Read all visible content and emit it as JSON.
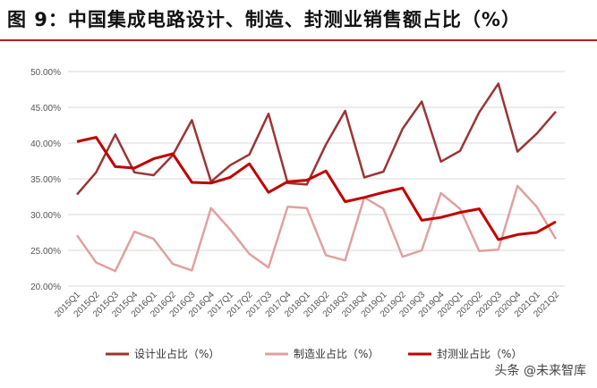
{
  "title": "图 9：中国集成电路设计、制造、封测业销售额占比（%）",
  "watermark": "头条 @未来智库",
  "chart_data": {
    "type": "line",
    "title": "图 9：中国集成电路设计、制造、封测业销售额占比（%）",
    "ylim": [
      20,
      50
    ],
    "yticks": [
      "20.00%",
      "25.00%",
      "30.00%",
      "35.00%",
      "40.00%",
      "45.00%",
      "50.00%"
    ],
    "grid": true,
    "legend_position": "bottom",
    "categories": [
      "2015Q1",
      "2015Q2",
      "2015Q3",
      "2015Q4",
      "2016Q1",
      "2016Q2",
      "2016Q3",
      "2016Q4",
      "2017Q1",
      "2017Q2",
      "2017Q3",
      "2017Q4",
      "2018Q1",
      "2018Q2",
      "2018Q3",
      "2018Q4",
      "2019Q1",
      "2019Q2",
      "2019Q3",
      "2019Q4",
      "2020Q1",
      "2020Q2",
      "2020Q3",
      "2020Q4",
      "2021Q1",
      "2021Q2"
    ],
    "series": [
      {
        "name": "设计业占比（%）",
        "color": "#9b3535",
        "width": 2.5,
        "values": [
          32.8,
          35.9,
          41.2,
          35.9,
          35.5,
          38.3,
          43.2,
          34.6,
          36.9,
          38.4,
          44.1,
          34.4,
          34.2,
          39.8,
          44.5,
          35.2,
          36.0,
          42.0,
          45.8,
          37.4,
          38.9,
          44.3,
          48.3,
          38.8,
          41.3,
          44.4
        ]
      },
      {
        "name": "制造业占比（%）",
        "color": "#e0a0a0",
        "width": 2.5,
        "values": [
          27.1,
          23.3,
          22.1,
          27.6,
          26.6,
          23.1,
          22.2,
          30.9,
          27.9,
          24.5,
          22.6,
          31.1,
          30.9,
          24.3,
          23.6,
          32.4,
          30.8,
          24.1,
          25.0,
          33.0,
          30.8,
          24.9,
          25.1,
          34.0,
          31.1,
          26.6
        ]
      },
      {
        "name": "封测业占比（%）",
        "color": "#c00000",
        "width": 3,
        "values": [
          40.2,
          40.8,
          36.7,
          36.5,
          37.8,
          38.5,
          34.5,
          34.4,
          35.2,
          37.1,
          33.1,
          34.6,
          34.8,
          36.1,
          31.8,
          32.4,
          33.1,
          33.7,
          29.2,
          29.6,
          30.3,
          30.8,
          26.5,
          27.2,
          27.5,
          29.0
        ]
      }
    ]
  }
}
